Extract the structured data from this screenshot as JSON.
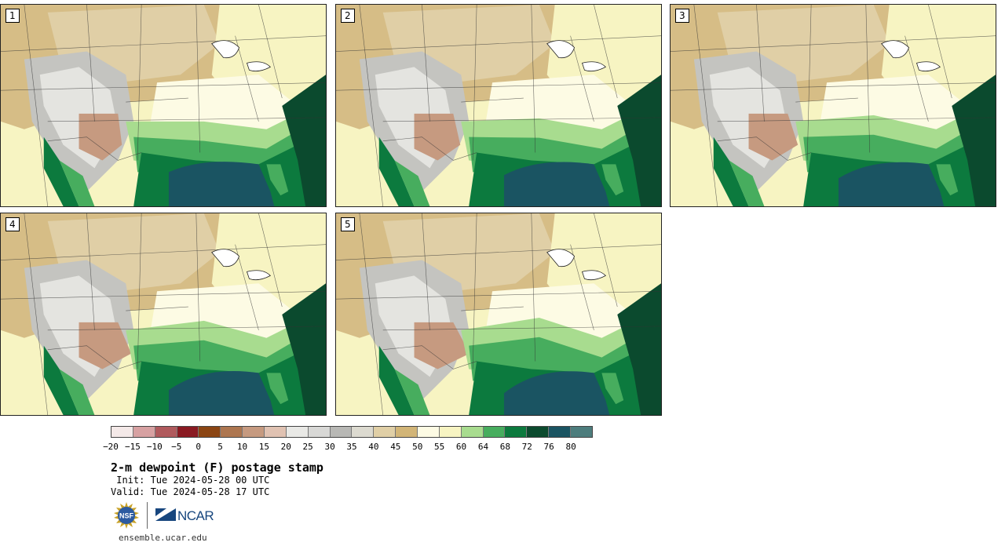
{
  "panels": [
    {
      "label": "1"
    },
    {
      "label": "2"
    },
    {
      "label": "3"
    },
    {
      "label": "4"
    },
    {
      "label": "5"
    }
  ],
  "colorbar": {
    "colors": [
      "#f4e9e8",
      "#d7a1a2",
      "#b05a5d",
      "#8a1a22",
      "#8b4513",
      "#ad7650",
      "#c69a80",
      "#e0c2b2",
      "#e9e9e6",
      "#d8d8d6",
      "#b8b8b5",
      "#dcdad0",
      "#e0cfa6",
      "#d2b577",
      "#fdfbe4",
      "#f7f4c2",
      "#a8dc8f",
      "#47ad5e",
      "#0c7a3e",
      "#0b4a2e",
      "#1a5462",
      "#4d7d7d"
    ],
    "tick_labels": [
      "−20",
      "−15",
      "−10",
      "−5",
      "0",
      "5",
      "10",
      "15",
      "20",
      "25",
      "30",
      "35",
      "40",
      "45",
      "50",
      "55",
      "60",
      "64",
      "68",
      "72",
      "76",
      "80"
    ]
  },
  "title": "2-m dewpoint (F) postage stamp",
  "init": " Init: Tue 2024-05-28 00 UTC",
  "valid": "Valid: Tue 2024-05-28 17 UTC",
  "logos": {
    "nsf": "NSF",
    "ncar": "NCAR"
  },
  "url": "ensemble.ucar.edu"
}
